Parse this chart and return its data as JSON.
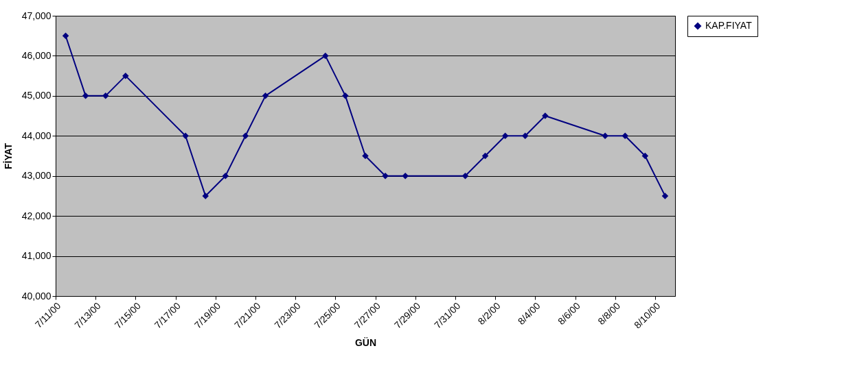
{
  "chart_data": {
    "type": "line",
    "xlabel": "GÜN",
    "ylabel": "FİYAT",
    "x": [
      "2000-07-11T12:00",
      "2000-07-12T12:00",
      "2000-07-13T12:00",
      "2000-07-14T12:00",
      "2000-07-17T12:00",
      "2000-07-18T12:00",
      "2000-07-19T12:00",
      "2000-07-20T12:00",
      "2000-07-21T12:00",
      "2000-07-24T12:00",
      "2000-07-25T12:00",
      "2000-07-26T12:00",
      "2000-07-27T12:00",
      "2000-07-28T12:00",
      "2000-07-31T12:00",
      "2000-08-01T12:00",
      "2000-08-02T12:00",
      "2000-08-03T12:00",
      "2000-08-04T12:00",
      "2000-08-07T12:00",
      "2000-08-08T12:00",
      "2000-08-09T12:00",
      "2000-08-10T12:00"
    ],
    "series": [
      {
        "name": "KAP.FIYAT",
        "color": "#000080",
        "values": [
          46500,
          45000,
          45000,
          45500,
          44000,
          42500,
          43000,
          44000,
          45000,
          46000,
          45000,
          43500,
          43000,
          43000,
          43000,
          43500,
          44000,
          44000,
          44500,
          44000,
          44000,
          43500,
          42500
        ]
      }
    ],
    "xlim": [
      "2000-07-11",
      "2000-08-11"
    ],
    "xticks": [
      {
        "value": "2000-07-11",
        "label": "7/11/00"
      },
      {
        "value": "2000-07-13",
        "label": "7/13/00"
      },
      {
        "value": "2000-07-15",
        "label": "7/15/00"
      },
      {
        "value": "2000-07-17",
        "label": "7/17/00"
      },
      {
        "value": "2000-07-19",
        "label": "7/19/00"
      },
      {
        "value": "2000-07-21",
        "label": "7/21/00"
      },
      {
        "value": "2000-07-23",
        "label": "7/23/00"
      },
      {
        "value": "2000-07-25",
        "label": "7/25/00"
      },
      {
        "value": "2000-07-27",
        "label": "7/27/00"
      },
      {
        "value": "2000-07-29",
        "label": "7/29/00"
      },
      {
        "value": "2000-07-31",
        "label": "7/31/00"
      },
      {
        "value": "2000-08-02",
        "label": "8/2/00"
      },
      {
        "value": "2000-08-04",
        "label": "8/4/00"
      },
      {
        "value": "2000-08-06",
        "label": "8/6/00"
      },
      {
        "value": "2000-08-08",
        "label": "8/8/00"
      },
      {
        "value": "2000-08-10",
        "label": "8/10/00"
      }
    ],
    "ylim": [
      40000,
      47000
    ],
    "yticks": [
      {
        "value": 40000,
        "label": "40,000"
      },
      {
        "value": 41000,
        "label": "41,000"
      },
      {
        "value": 42000,
        "label": "42,000"
      },
      {
        "value": 43000,
        "label": "43,000"
      },
      {
        "value": 44000,
        "label": "44,000"
      },
      {
        "value": 45000,
        "label": "45,000"
      },
      {
        "value": 46000,
        "label": "46,000"
      },
      {
        "value": 47000,
        "label": "47,000"
      }
    ],
    "grid": "y",
    "legend": "right",
    "marker": "diamond",
    "line_style": "solid"
  }
}
